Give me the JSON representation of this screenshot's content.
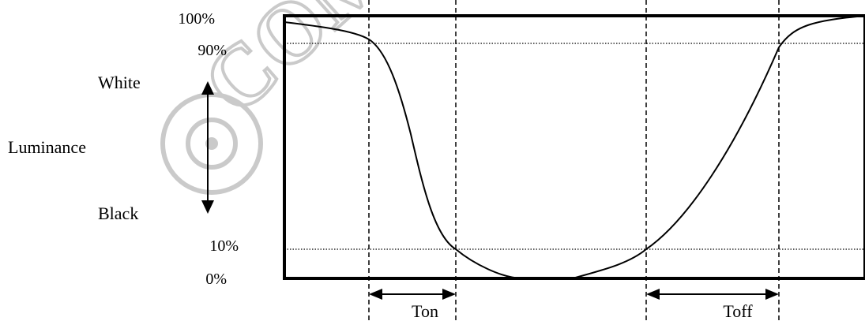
{
  "labels": {
    "pct_100": "100%",
    "pct_90": "90%",
    "pct_10": "10%",
    "pct_0": "0%",
    "white": "White",
    "luminance": "Luminance",
    "black": "Black",
    "ton": "Ton",
    "toff": "Toff"
  },
  "watermark": {
    "text": "COMPLETE",
    "icon": "circle-logo-watermark",
    "color": "#c8c8c8"
  },
  "colors": {
    "line": "#000000",
    "background": "#ffffff"
  }
}
